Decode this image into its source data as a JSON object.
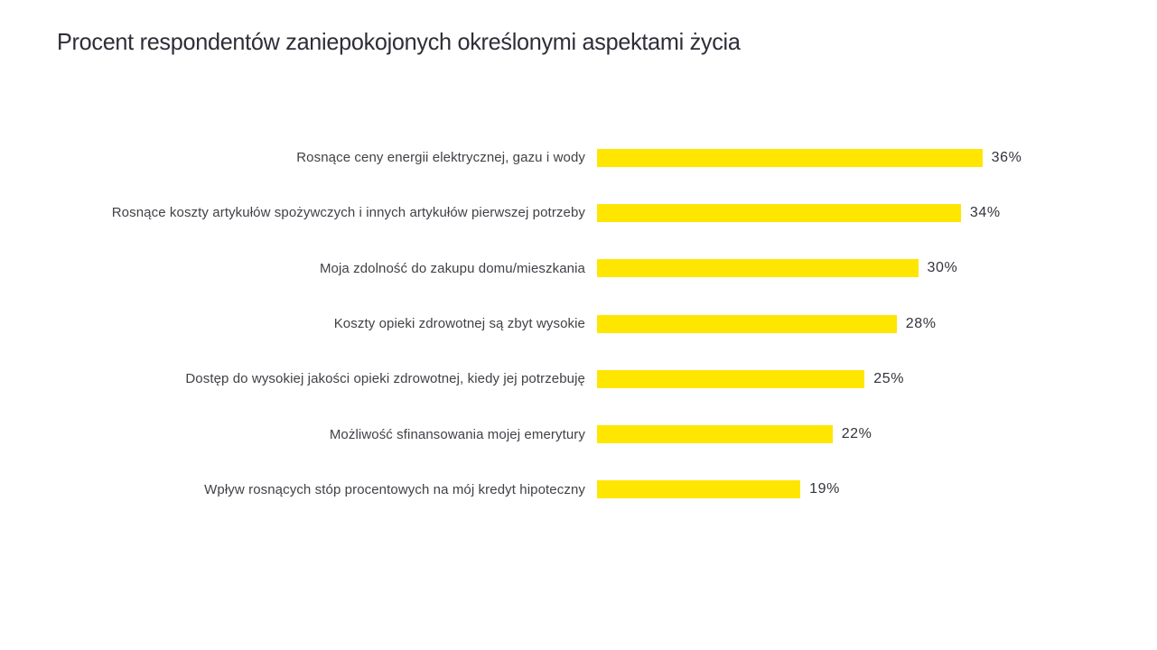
{
  "title": "Procent respondentów zaniepokojonych określonymi aspektami życia",
  "chart_data": {
    "type": "bar",
    "orientation": "horizontal",
    "title": "Procent respondentów zaniepokojonych określonymi aspektami życia",
    "categories": [
      "Rosnące ceny energii elektrycznej, gazu i wody",
      "Rosnące koszty artykułów spożywczych i innych artykułów pierwszej potrzeby",
      "Moja zdolność do zakupu domu/mieszkania",
      "Koszty opieki zdrowotnej są zbyt wysokie",
      "Dostęp do wysokiej jakości opieki zdrowotnej, kiedy jej potrzebuję",
      "Możliwość sfinansowania mojej emerytury",
      "Wpływ rosnących stóp procentowych na mój kredyt hipoteczny"
    ],
    "values": [
      36,
      34,
      30,
      28,
      25,
      22,
      19
    ],
    "value_labels": [
      "36%",
      "34%",
      "30%",
      "28%",
      "25%",
      "22%",
      "19%"
    ],
    "xlabel": "",
    "ylabel": "",
    "xlim": [
      0,
      40
    ],
    "grid": false,
    "legend": false,
    "bar_color": "#FFE600",
    "label_color": "#414147",
    "title_color": "#2e2e38"
  }
}
